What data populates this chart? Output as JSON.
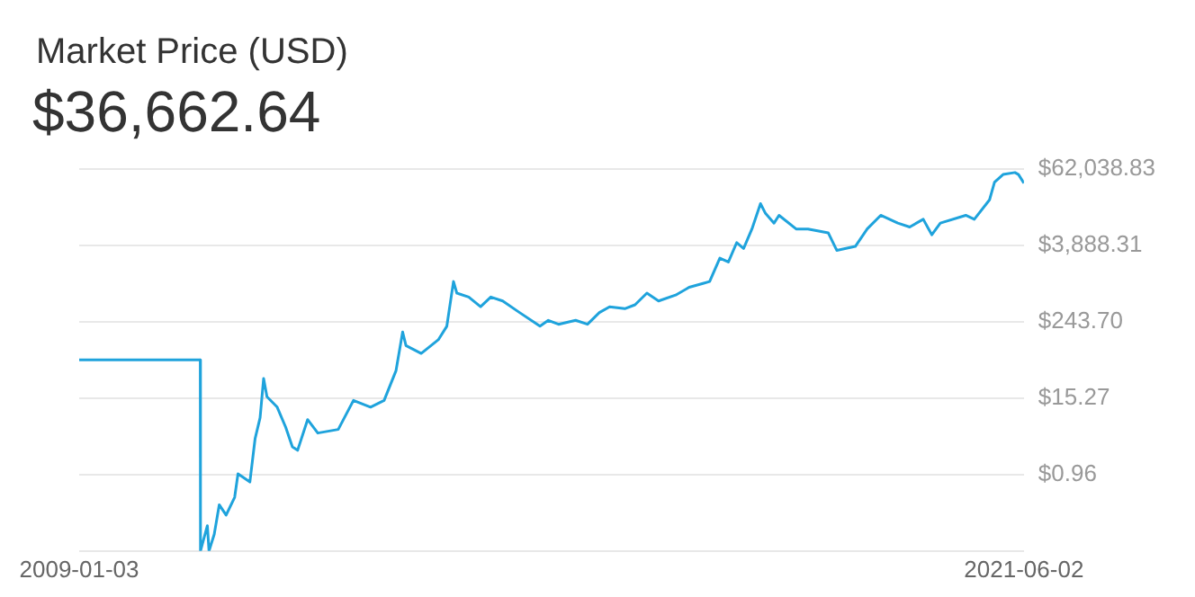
{
  "chart_data": {
    "type": "line",
    "title": "Market Price (USD)",
    "subtitle": "$36,662.64",
    "x": [
      "2009-01-03",
      "2010-08-07",
      "2010-08-08",
      "2010-09-10",
      "2010-09-18",
      "2010-10-13",
      "2010-11-06",
      "2010-12-09",
      "2011-01-19",
      "2011-02-04",
      "2011-04-02",
      "2011-04-27",
      "2011-05-21",
      "2011-06-07",
      "2011-06-23",
      "2011-08-11",
      "2011-09-21",
      "2011-10-23",
      "2011-11-17",
      "2012-01-04",
      "2012-02-22",
      "2012-05-30",
      "2012-08-11",
      "2012-11-01",
      "2013-01-05",
      "2013-03-03",
      "2013-04-04",
      "2013-04-20",
      "2013-07-02",
      "2013-09-22",
      "2013-11-02",
      "2013-12-04",
      "2013-12-20",
      "2014-02-15",
      "2014-04-13",
      "2014-06-01",
      "2014-07-28",
      "2014-10-17",
      "2015-01-23",
      "2015-03-04",
      "2015-04-22",
      "2015-07-13",
      "2015-09-08",
      "2015-11-04",
      "2015-12-23",
      "2016-03-05",
      "2016-04-23",
      "2016-06-19",
      "2016-08-14",
      "2016-11-04",
      "2017-01-08",
      "2017-03-15",
      "2017-04-16",
      "2017-06-04",
      "2017-07-15",
      "2017-08-24",
      "2017-09-26",
      "2017-11-05",
      "2017-12-16",
      "2018-01-09",
      "2018-02-19",
      "2018-03-15",
      "2018-06-05",
      "2018-08-01",
      "2018-11-06",
      "2018-12-17",
      "2019-03-16",
      "2019-05-12",
      "2019-07-16",
      "2019-10-06",
      "2019-12-02",
      "2020-02-05",
      "2020-03-17",
      "2020-04-27",
      "2020-08-27",
      "2020-10-07",
      "2020-12-19",
      "2021-01-12",
      "2021-02-22",
      "2021-04-20",
      "2021-05-07",
      "2021-06-02"
    ],
    "series": [
      {
        "color": "#1fa3dc",
        "values": [
          61,
          61,
          0.06,
          0.15,
          0.06,
          0.11,
          0.32,
          0.22,
          0.42,
          0.98,
          0.73,
          3.5,
          7.5,
          31,
          16,
          11,
          5.3,
          2.6,
          2.3,
          7.0,
          4.3,
          4.9,
          14,
          11,
          14,
          41,
          167,
          102,
          77,
          126,
          206,
          1040,
          684,
          593,
          417,
          593,
          515,
          338,
          206,
          255,
          221,
          255,
          221,
          338,
          417,
          389,
          448,
          684,
          515,
          637,
          845,
          972,
          1040,
          2430,
          2110,
          4270,
          3450,
          6980,
          17460,
          12270,
          8630,
          11450,
          6980,
          6980,
          6070,
          3220,
          3710,
          6980,
          11450,
          8630,
          7500,
          9930,
          5660,
          8630,
          11450,
          9930,
          20090,
          37930,
          50230,
          53950,
          50230,
          36662.64
        ]
      }
    ],
    "xlim": [
      "2009-01-03",
      "2021-06-02"
    ],
    "xticks": [
      "2009-01-03",
      "2021-06-02"
    ],
    "log": "y",
    "ylim": [
      0.06,
      62038.83
    ],
    "yticks": [
      {
        "value": 0.06,
        "label": null
      },
      {
        "value": 0.96,
        "label": "$0.96"
      },
      {
        "value": 15.27,
        "label": "$15.27"
      },
      {
        "value": 243.7,
        "label": "$243.70"
      },
      {
        "value": 3888.31,
        "label": "$3,888.31"
      },
      {
        "value": 62038.83,
        "label": "$62,038.83"
      }
    ],
    "grid": "y"
  }
}
